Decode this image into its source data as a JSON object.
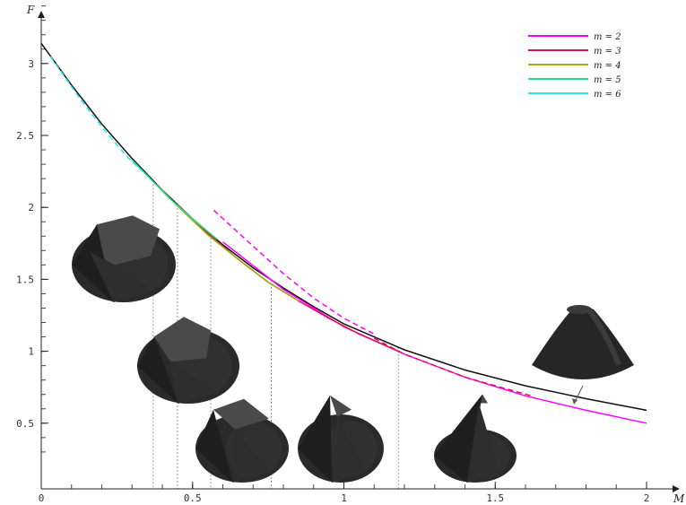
{
  "chart_data": {
    "type": "line",
    "xlabel": "M",
    "ylabel": "F",
    "xlim": [
      0,
      2.06
    ],
    "ylim": [
      0.2,
      3.5
    ],
    "x_ticks": [
      {
        "value": 0,
        "label": "0"
      },
      {
        "value": 0.5,
        "label": "0.5"
      },
      {
        "value": 1,
        "label": "1"
      },
      {
        "value": 1.5,
        "label": "1.5"
      },
      {
        "value": 2,
        "label": "2"
      }
    ],
    "y_ticks": [
      {
        "value": 0.5,
        "label": "0.5"
      },
      {
        "value": 1,
        "label": "1"
      },
      {
        "value": 1.5,
        "label": "1.5"
      },
      {
        "value": 2,
        "label": "2"
      },
      {
        "value": 2.5,
        "label": "2.5"
      },
      {
        "value": 3,
        "label": "3"
      }
    ],
    "legend_position": "top-right",
    "legend": [
      {
        "label": "m = 2",
        "color": "#ff00ff"
      },
      {
        "label": "m = 3",
        "color": "#e0105a"
      },
      {
        "label": "m = 4",
        "color": "#9aaf0a"
      },
      {
        "label": "m = 5",
        "color": "#22dd88"
      },
      {
        "label": "m = 6",
        "color": "#22e8e8"
      }
    ],
    "series": [
      {
        "color": "#111111",
        "style": "solid",
        "x": [
          0,
          0.1,
          0.2,
          0.3,
          0.4,
          0.5,
          0.6,
          0.7,
          0.8,
          0.9,
          1.0,
          1.2,
          1.4,
          1.6,
          1.8,
          2.0
        ],
        "y": [
          3.14,
          2.85,
          2.58,
          2.34,
          2.12,
          1.92,
          1.74,
          1.58,
          1.44,
          1.31,
          1.19,
          1.01,
          0.87,
          0.76,
          0.67,
          0.59
        ]
      },
      {
        "color": "#ff00ff",
        "style": "solid",
        "x": [
          0.6,
          0.8,
          1.0,
          1.2,
          1.4,
          1.6,
          1.8,
          2.0
        ],
        "y": [
          1.76,
          1.43,
          1.17,
          0.98,
          0.82,
          0.69,
          0.59,
          0.5
        ]
      },
      {
        "color": "#ff00ff",
        "style": "dashed",
        "x": [
          0.57,
          0.7,
          0.8,
          0.9,
          1.0,
          1.1
        ],
        "y": [
          1.98,
          1.73,
          1.54,
          1.37,
          1.23,
          1.12
        ]
      },
      {
        "color": "#e0105a",
        "style": "solid",
        "x": [
          0.45,
          0.55,
          0.65,
          0.75,
          0.85,
          0.95,
          1.05,
          1.18
        ],
        "y": [
          2.02,
          1.82,
          1.64,
          1.48,
          1.35,
          1.23,
          1.12,
          1.0
        ]
      },
      {
        "color": "#e0105a",
        "style": "dashed",
        "x": [
          1.1,
          1.2,
          1.3,
          1.4,
          1.5,
          1.62
        ],
        "y": [
          1.09,
          0.98,
          0.9,
          0.82,
          0.76,
          0.69
        ]
      },
      {
        "color": "#9aaf0a",
        "style": "solid",
        "x": [
          0.38,
          0.45,
          0.55,
          0.65,
          0.75,
          0.85
        ],
        "y": [
          2.16,
          2.01,
          1.81,
          1.64,
          1.48,
          1.35
        ]
      },
      {
        "color": "#22dd88",
        "style": "solid",
        "x": [
          0.3,
          0.36,
          0.42,
          0.5,
          0.58
        ],
        "y": [
          2.33,
          2.2,
          2.07,
          1.92,
          1.78
        ]
      },
      {
        "color": "#22e8e8",
        "style": "dashed",
        "x": [
          0.03,
          0.08,
          0.13,
          0.2,
          0.28,
          0.36
        ],
        "y": [
          3.05,
          2.9,
          2.75,
          2.56,
          2.36,
          2.2
        ]
      }
    ],
    "vertical_guides": [
      0.37,
      0.45,
      0.56,
      0.76,
      1.18
    ],
    "thumbnails": [
      {
        "label": "hexagonal-top cone thumbnail",
        "shape": "hexagon"
      },
      {
        "label": "pentagonal-top cone thumbnail",
        "shape": "pentagon"
      },
      {
        "label": "square-top cone thumbnail",
        "shape": "square"
      },
      {
        "label": "triangular-top cone thumbnail",
        "shape": "triangle"
      },
      {
        "label": "sharp-tip cone thumbnail",
        "shape": "tip"
      },
      {
        "label": "rounded cone thumbnail",
        "shape": "round"
      }
    ]
  }
}
